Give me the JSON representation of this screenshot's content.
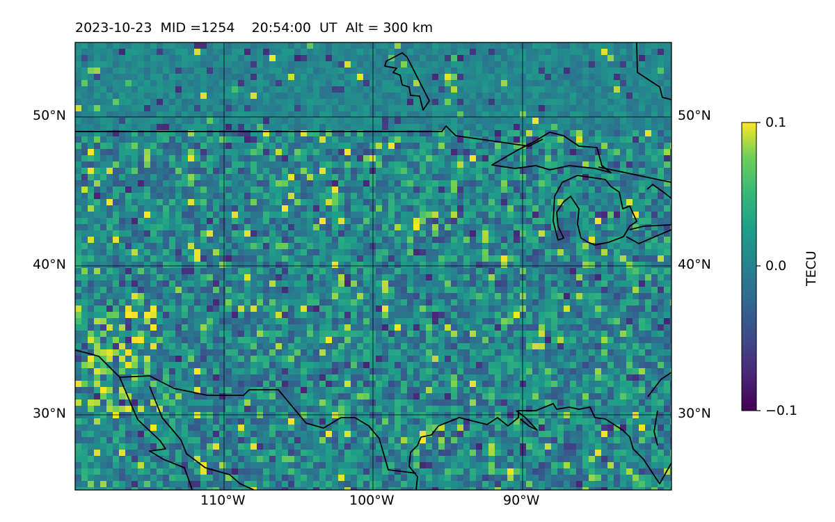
{
  "title": "2023-10-23  MID =1254    20:54:00  UT  Alt = 300 km",
  "colors": {
    "viridis_low": "#440154",
    "viridis_mid": "#21918c",
    "viridis_high": "#fde725",
    "coastline": "#000000",
    "gridline": "#000000"
  },
  "map": {
    "lon_range": [
      -120,
      -80
    ],
    "lat_range": [
      25,
      55
    ],
    "lat_grid": [
      30,
      40,
      50
    ],
    "lon_grid": [
      -110,
      -100,
      -90
    ],
    "lat_labels_left": [
      "30°N",
      "40°N",
      "50°N"
    ],
    "lat_labels_right": [
      "30°N",
      "40°N",
      "50°N"
    ],
    "lon_labels": [
      "110°W",
      "100°W",
      "90°W"
    ]
  },
  "colorbar": {
    "label": "TECU",
    "ticks": [
      "0.1",
      "0.0",
      "−0.1"
    ],
    "range": [
      -0.1,
      0.1
    ],
    "colormap": "viridis"
  }
}
